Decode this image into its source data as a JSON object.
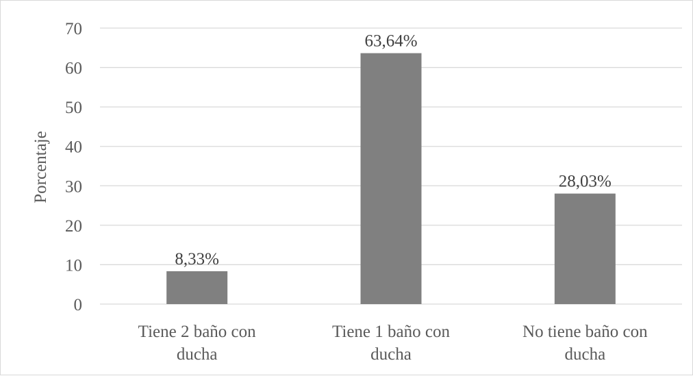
{
  "chart_data": {
    "type": "bar",
    "categories": [
      [
        "Tiene 2 baño con",
        "ducha"
      ],
      [
        "Tiene 1 baño con",
        "ducha"
      ],
      [
        "No tiene baño con",
        "ducha"
      ]
    ],
    "values": [
      8.33,
      63.64,
      28.03
    ],
    "data_labels": [
      "8,33%",
      "63,64%",
      "28,03%"
    ],
    "title": "",
    "xlabel": "",
    "ylabel": "Porcentaje",
    "ylim": [
      0,
      70
    ],
    "yticks": [
      0,
      10,
      20,
      30,
      40,
      50,
      60,
      70
    ],
    "grid": true,
    "legend": "none",
    "bar_color": "#808080"
  }
}
